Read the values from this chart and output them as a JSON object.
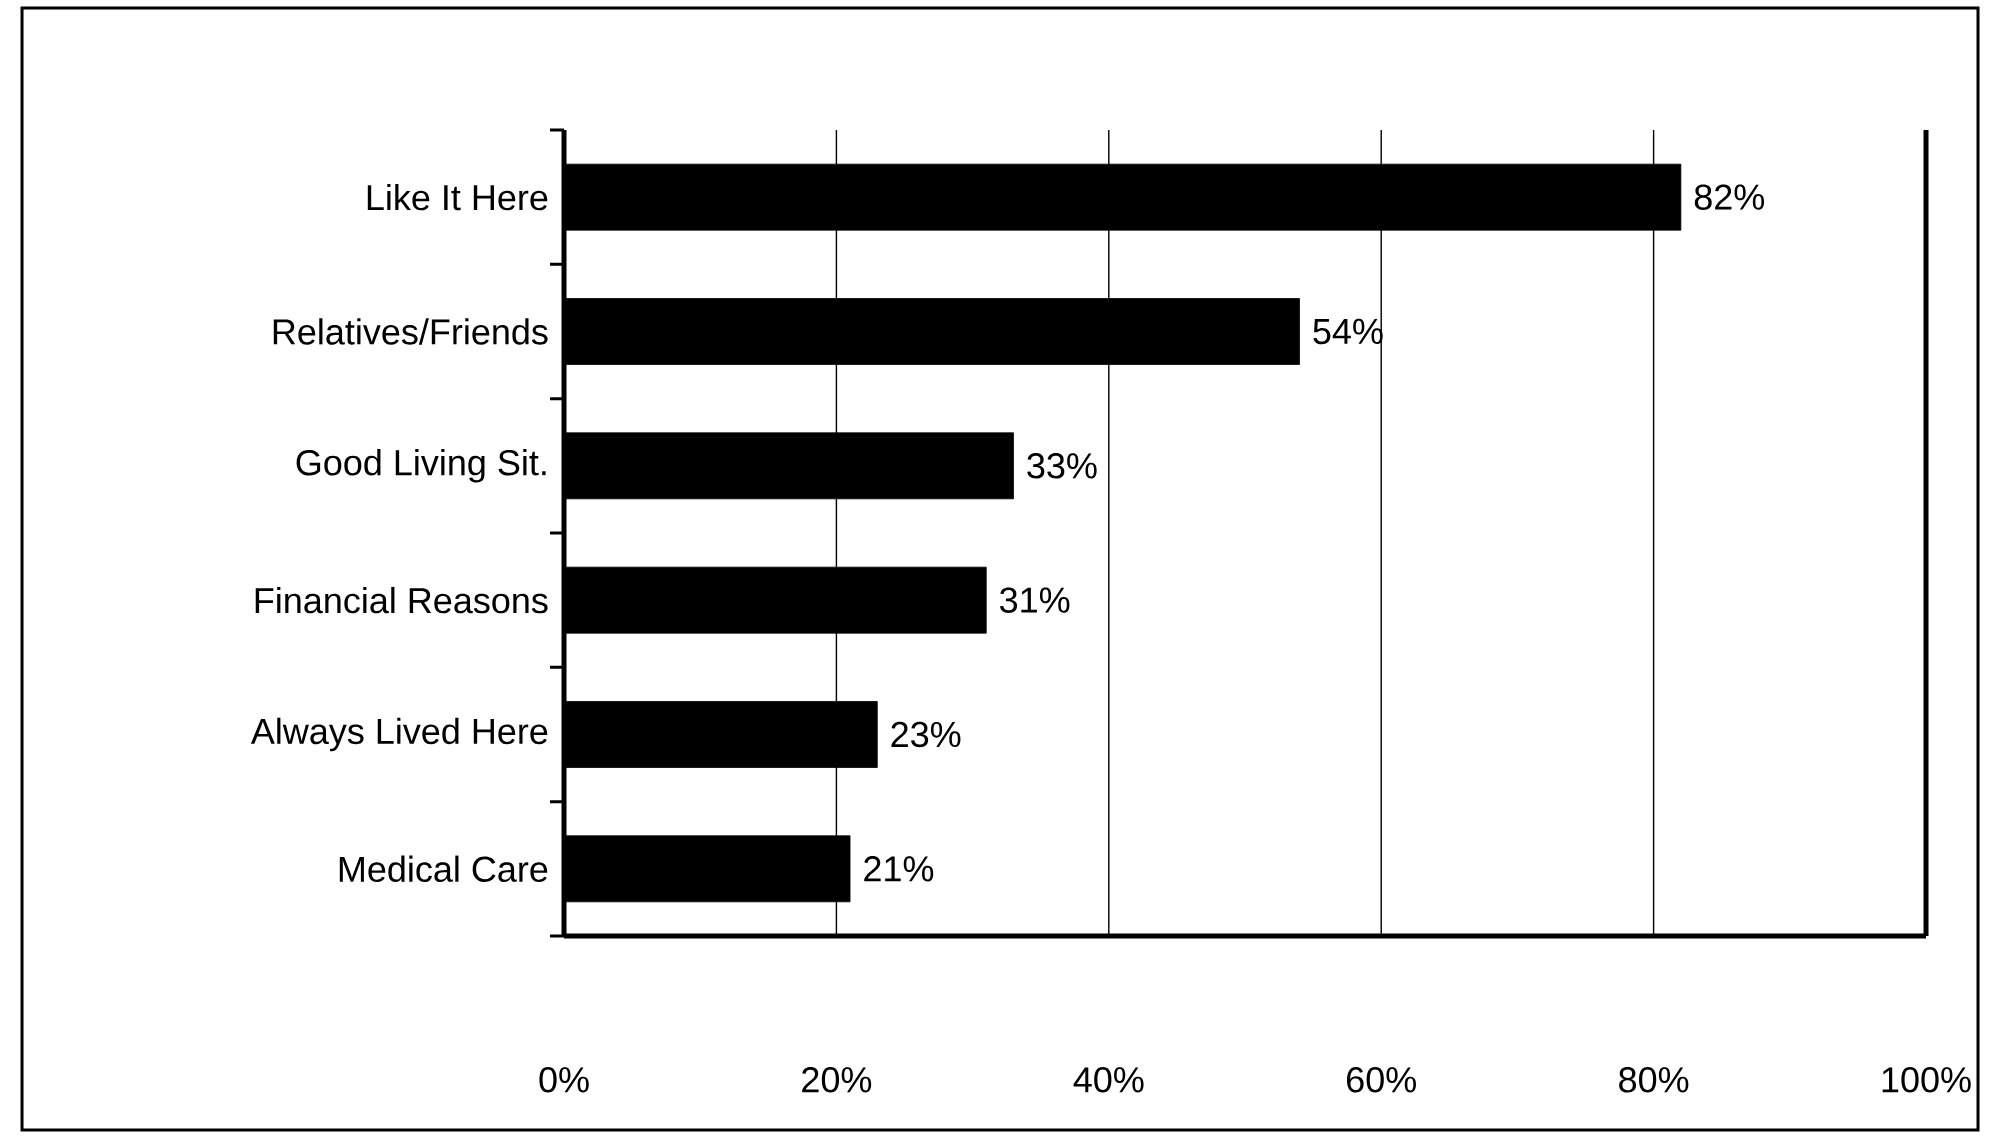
{
  "chart_data": {
    "type": "bar",
    "orientation": "horizontal",
    "categories": [
      "Like It Here",
      "Relatives/Friends",
      "Good Living Sit.",
      "Financial Reasons",
      "Always Lived Here",
      "Medical Care"
    ],
    "values": [
      82,
      54,
      33,
      31,
      23,
      21
    ],
    "value_labels": [
      "82%",
      "54%",
      "33%",
      "31%",
      "23%",
      "21%"
    ],
    "color": "#000000",
    "xlim": [
      0,
      100
    ],
    "xticks": [
      {
        "value": 0,
        "label": "0%"
      },
      {
        "value": 20,
        "label": "20%"
      },
      {
        "value": 40,
        "label": "40%"
      },
      {
        "value": 60,
        "label": "60%"
      },
      {
        "value": 80,
        "label": "80%"
      },
      {
        "value": 100,
        "label": "100%"
      }
    ],
    "grid": "x"
  }
}
